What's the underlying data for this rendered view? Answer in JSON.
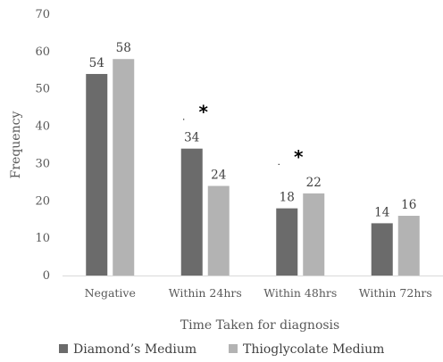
{
  "chart_data": {
    "type": "bar",
    "title": "",
    "xlabel": "Time Taken for diagnosis",
    "ylabel": "Frequency",
    "ylim": [
      0,
      70
    ],
    "yticks": [
      0,
      10,
      20,
      30,
      40,
      50,
      60,
      70
    ],
    "grid": false,
    "legend_position": "bottom",
    "categories": [
      "Negative",
      "Within 24hrs",
      "Within 48hrs",
      "Within 72hrs"
    ],
    "series": [
      {
        "name": "Diamond’s Medium",
        "values": [
          54,
          34,
          18,
          14
        ],
        "color": "#6b6b6b"
      },
      {
        "name": "Thioglycolate Medium",
        "values": [
          58,
          24,
          22,
          16
        ],
        "color": "#b3b3b3"
      }
    ],
    "annotations": [
      {
        "category": "Within 24hrs",
        "text": "*"
      },
      {
        "category": "Within 48hrs",
        "text": "*"
      }
    ]
  }
}
